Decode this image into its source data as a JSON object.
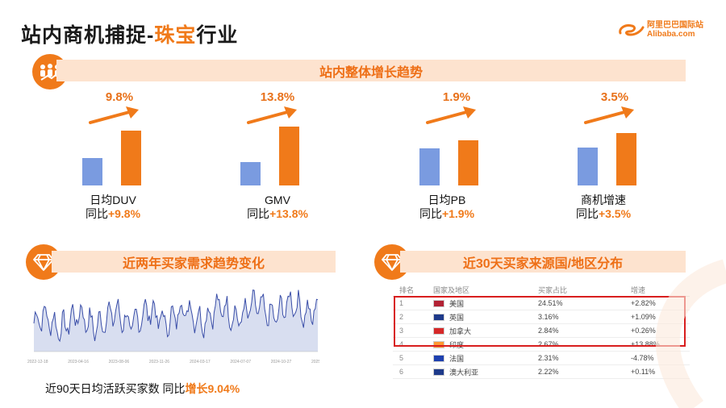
{
  "header": {
    "title_prefix": "站内商机捕捉-",
    "title_highlight": "珠宝",
    "title_suffix": "行业"
  },
  "logo": {
    "cn": "阿里巴巴国际站",
    "en": "Alibaba.com"
  },
  "overall": {
    "banner": "站内整体增长趋势",
    "metrics": [
      {
        "pct": "9.8%",
        "label": "日均DUV",
        "yoy_prefix": "同比",
        "yoy": "+9.8%",
        "base": 0.34,
        "current": 0.68
      },
      {
        "pct": "13.8%",
        "label": "GMV",
        "yoy_prefix": "同比",
        "yoy": "+13.8%",
        "base": 0.29,
        "current": 0.73
      },
      {
        "pct": "1.9%",
        "label": "日均PB",
        "yoy_prefix": "同比",
        "yoy": "+1.9%",
        "base": 0.46,
        "current": 0.56
      },
      {
        "pct": "3.5%",
        "label": "商机增速",
        "yoy_prefix": "同比",
        "yoy": "+3.5%",
        "base": 0.47,
        "current": 0.65
      }
    ]
  },
  "demand": {
    "banner": "近两年买家需求趋势变化",
    "caption_prefix": "近90天日均活跃买家数 同比",
    "caption_highlight": "增长9.04%",
    "x_ticks": [
      "2022-12-18",
      "2023-04-16",
      "2023-08-06",
      "2023-11-26",
      "2024-03-17",
      "2024-07-07",
      "2024-10-27",
      "2025-02-16"
    ]
  },
  "source": {
    "banner": "近30天买家来源国/地区分布",
    "columns": [
      "排名",
      "国家及地区",
      "买家占比",
      "增速"
    ],
    "rows": [
      {
        "rank": "1",
        "country": "美国",
        "share": "24.51%",
        "growth": "+2.82%"
      },
      {
        "rank": "2",
        "country": "英国",
        "share": "3.16%",
        "growth": "+1.09%"
      },
      {
        "rank": "3",
        "country": "加拿大",
        "share": "2.84%",
        "growth": "+0.26%"
      },
      {
        "rank": "4",
        "country": "印度",
        "share": "2.67%",
        "growth": "+13.88%"
      },
      {
        "rank": "5",
        "country": "法国",
        "share": "2.31%",
        "growth": "-4.78%"
      },
      {
        "rank": "6",
        "country": "澳大利亚",
        "share": "2.22%",
        "growth": "+0.11%"
      }
    ]
  },
  "colors": {
    "accent": "#f07a1a",
    "blue_bar": "#7a9be0",
    "banner_bg": "#fde3cf",
    "highlight_box": "#d81e1e"
  }
}
